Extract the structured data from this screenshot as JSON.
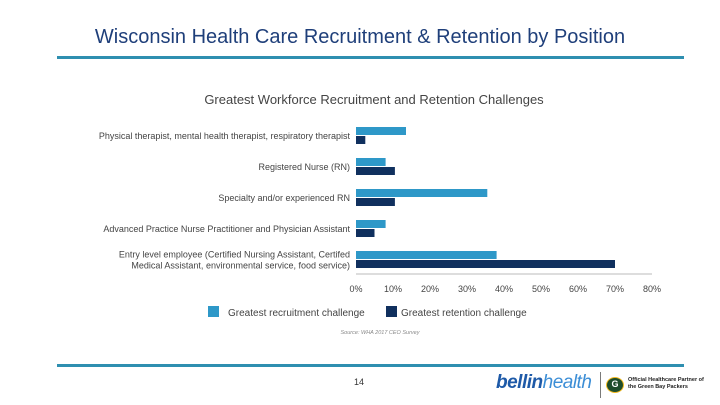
{
  "slide": {
    "title": "Wisconsin Health Care Recruitment & Retention by Position",
    "page_number": "14"
  },
  "footer": {
    "brand_part1": "bellin",
    "brand_part2": "health",
    "partner_text": "Official Healthcare Partner of the Green Bay Packers",
    "icon": "packers-g-logo-icon"
  },
  "colors": {
    "recruitment": "#2e98c8",
    "retention": "#10305e",
    "rule": "#2e8fb0",
    "title": "#1f3f7a"
  },
  "chart_data": {
    "type": "bar",
    "orientation": "horizontal",
    "title": "Greatest Workforce Recruitment and Retention Challenges",
    "categories": [
      [
        "Physical therapist, mental health therapist, respiratory therapist"
      ],
      [
        "Registered Nurse (RN)"
      ],
      [
        "Specialty and/or experienced RN"
      ],
      [
        "Advanced Practice Nurse Practitioner and Physician Assistant"
      ],
      [
        "Entry level employee (Certified Nursing Assistant, Certifed",
        "Medical Assistant, environmental service, food service)"
      ]
    ],
    "series": [
      {
        "name": "Greatest recruitment challenge",
        "values": [
          13.5,
          8,
          35.5,
          8,
          38
        ]
      },
      {
        "name": "Greatest retention challenge",
        "values": [
          2.5,
          10.5,
          10.5,
          5,
          70
        ]
      }
    ],
    "xlim": [
      0,
      80
    ],
    "xticks": [
      "0%",
      "10%",
      "20%",
      "30%",
      "40%",
      "50%",
      "60%",
      "70%",
      "80%"
    ],
    "grid": false,
    "legend_position": "bottom",
    "source": "Source: WHA 2017 CEO Survey"
  }
}
